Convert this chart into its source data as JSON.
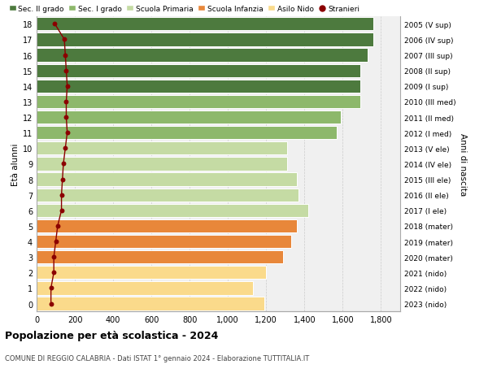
{
  "ages": [
    0,
    1,
    2,
    3,
    4,
    5,
    6,
    7,
    8,
    9,
    10,
    11,
    12,
    13,
    14,
    15,
    16,
    17,
    18
  ],
  "right_labels": [
    "2023 (nido)",
    "2022 (nido)",
    "2021 (nido)",
    "2020 (mater)",
    "2019 (mater)",
    "2018 (mater)",
    "2017 (I ele)",
    "2016 (II ele)",
    "2015 (III ele)",
    "2014 (IV ele)",
    "2013 (V ele)",
    "2012 (I med)",
    "2011 (II med)",
    "2010 (III med)",
    "2009 (I sup)",
    "2008 (II sup)",
    "2007 (III sup)",
    "2006 (IV sup)",
    "2005 (V sup)"
  ],
  "bar_values": [
    1190,
    1130,
    1200,
    1290,
    1330,
    1360,
    1420,
    1370,
    1360,
    1310,
    1310,
    1570,
    1590,
    1690,
    1690,
    1690,
    1730,
    1760,
    1760
  ],
  "bar_colors": [
    "#FADA8B",
    "#FADA8B",
    "#FADA8B",
    "#E8873A",
    "#E8873A",
    "#E8873A",
    "#C5DBA4",
    "#C5DBA4",
    "#C5DBA4",
    "#C5DBA4",
    "#C5DBA4",
    "#8DB86B",
    "#8DB86B",
    "#8DB86B",
    "#4D7A3E",
    "#4D7A3E",
    "#4D7A3E",
    "#4D7A3E",
    "#4D7A3E"
  ],
  "stranieri_values": [
    75,
    75,
    90,
    90,
    100,
    110,
    130,
    130,
    135,
    140,
    150,
    160,
    155,
    155,
    160,
    155,
    150,
    145,
    95
  ],
  "legend_labels": [
    "Sec. II grado",
    "Sec. I grado",
    "Scuola Primaria",
    "Scuola Infanzia",
    "Asilo Nido",
    "Stranieri"
  ],
  "legend_colors": [
    "#4D7A3E",
    "#8DB86B",
    "#C5DBA4",
    "#E8873A",
    "#FADA8B",
    "#8B0000"
  ],
  "title": "Popolazione per età scolastica - 2024",
  "subtitle": "COMUNE DI REGGIO CALABRIA - Dati ISTAT 1° gennaio 2024 - Elaborazione TUTTITALIA.IT",
  "ylabel": "Età alunni",
  "right_ylabel": "Anni di nascita",
  "xlabel_ticks": [
    0,
    200,
    400,
    600,
    800,
    1000,
    1200,
    1400,
    1600,
    1800
  ],
  "xlim": [
    0,
    1900
  ],
  "background_color": "#FFFFFF",
  "plot_bg_color": "#F0F0F0"
}
